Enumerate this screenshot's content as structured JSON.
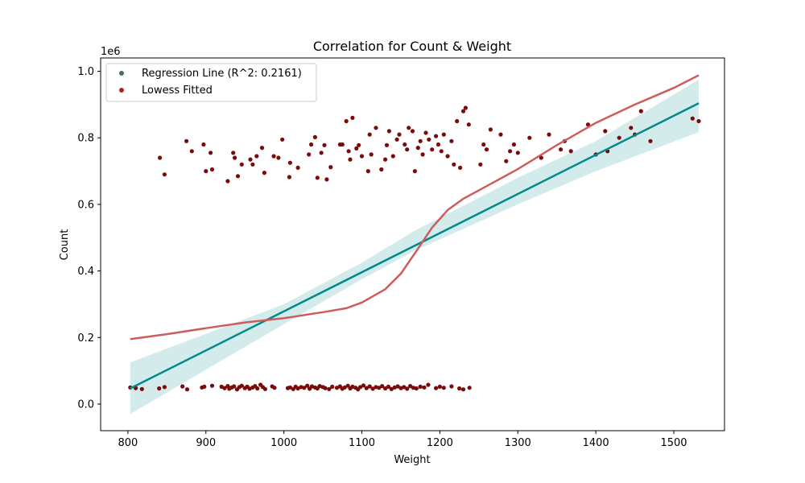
{
  "chart_data": {
    "type": "scatter",
    "title": "Correlation for Count & Weight",
    "xlabel": "Weight",
    "ylabel": "Count",
    "y_offset_label": "1e6",
    "xlim": [
      765,
      1565
    ],
    "ylim": [
      -80000,
      1040000
    ],
    "xticks": [
      800,
      900,
      1000,
      1100,
      1200,
      1300,
      1400,
      1500
    ],
    "xtick_labels": [
      "800",
      "900",
      "1000",
      "1100",
      "1200",
      "1300",
      "1400",
      "1500"
    ],
    "yticks": [
      0,
      200000,
      400000,
      600000,
      800000,
      1000000
    ],
    "ytick_labels": [
      "0.0",
      "0.2",
      "0.4",
      "0.6",
      "0.8",
      "1.0"
    ],
    "grid": false,
    "legend_position": "top-left",
    "legend": [
      {
        "label": "Regression Line (R^2: 0.2161)",
        "color": "#4c6b68"
      },
      {
        "label": "Lowess Fitted",
        "color": "#b22222"
      }
    ],
    "colors": {
      "points": "#7b0b0b",
      "regression": "#008b8b",
      "ci_band": "#d3eceb",
      "lowess": "#cd5c5c"
    },
    "regression_line": {
      "x": [
        803,
        1532
      ],
      "y": [
        47000,
        904000
      ]
    },
    "regression_ci": {
      "x": [
        803,
        1000,
        1100,
        1167,
        1300,
        1400,
        1532
      ],
      "upper": [
        125000,
        300000,
        425000,
        520000,
        680000,
        790000,
        975000
      ],
      "lower": [
        -30000,
        240000,
        375000,
        460000,
        600000,
        700000,
        817000
      ]
    },
    "lowess_line": {
      "x": [
        803,
        850,
        900,
        950,
        1000,
        1050,
        1080,
        1100,
        1130,
        1150,
        1170,
        1190,
        1210,
        1230,
        1260,
        1300,
        1350,
        1400,
        1450,
        1500,
        1532
      ],
      "y": [
        195000,
        210000,
        228000,
        245000,
        258000,
        276000,
        288000,
        305000,
        345000,
        392000,
        460000,
        530000,
        583000,
        617000,
        655000,
        706000,
        778000,
        845000,
        900000,
        950000,
        988000
      ]
    },
    "points_low": {
      "x": [
        803,
        810,
        818,
        840,
        847,
        870,
        876,
        895,
        898,
        908,
        920,
        924,
        928,
        930,
        933,
        936,
        940,
        943,
        946,
        950,
        953,
        956,
        960,
        963,
        966,
        970,
        973,
        976,
        985,
        988,
        1005,
        1008,
        1012,
        1015,
        1018,
        1022,
        1026,
        1030,
        1033,
        1036,
        1040,
        1043,
        1046,
        1050,
        1053,
        1058,
        1062,
        1068,
        1072,
        1075,
        1078,
        1082,
        1085,
        1088,
        1092,
        1095,
        1098,
        1102,
        1106,
        1110,
        1114,
        1118,
        1122,
        1126,
        1130,
        1134,
        1138,
        1142,
        1146,
        1150,
        1154,
        1158,
        1162,
        1166,
        1170,
        1175,
        1180,
        1185,
        1195,
        1200,
        1205,
        1215,
        1225,
        1230,
        1238
      ],
      "y": [
        50000,
        48000,
        45000,
        47000,
        51000,
        53000,
        44000,
        50000,
        52000,
        55000,
        52000,
        48000,
        54000,
        46000,
        50000,
        53000,
        44000,
        51000,
        55000,
        48000,
        52000,
        46000,
        50000,
        54000,
        47000,
        58000,
        51000,
        45000,
        53000,
        49000,
        48000,
        50000,
        45000,
        52000,
        47000,
        51000,
        49000,
        55000,
        46000,
        53000,
        50000,
        47000,
        54000,
        51000,
        48000,
        45000,
        52000,
        49000,
        53000,
        46000,
        50000,
        55000,
        47000,
        52000,
        49000,
        44000,
        51000,
        56000,
        48000,
        53000,
        46000,
        51000,
        49000,
        54000,
        47000,
        52000,
        45000,
        50000,
        53000,
        48000,
        51000,
        46000,
        54000,
        49000,
        47000,
        52000,
        50000,
        58000,
        48000,
        52000,
        49000,
        53000,
        47000,
        44000,
        49000
      ]
    },
    "points_high": {
      "x": [
        841,
        847,
        875,
        882,
        897,
        900,
        906,
        908,
        928,
        935,
        937,
        941,
        946,
        957,
        960,
        965,
        972,
        975,
        987,
        993,
        998,
        1007,
        1008,
        1018,
        1032,
        1035,
        1040,
        1043,
        1048,
        1052,
        1055,
        1060,
        1072,
        1075,
        1080,
        1083,
        1085,
        1088,
        1093,
        1096,
        1100,
        1108,
        1110,
        1112,
        1118,
        1125,
        1130,
        1132,
        1135,
        1140,
        1145,
        1148,
        1155,
        1158,
        1160,
        1165,
        1168,
        1172,
        1175,
        1178,
        1182,
        1186,
        1190,
        1195,
        1198,
        1202,
        1205,
        1210,
        1215,
        1218,
        1222,
        1226,
        1230,
        1233,
        1237,
        1252,
        1256,
        1260,
        1265,
        1278,
        1285,
        1290,
        1295,
        1300,
        1315,
        1330,
        1340,
        1355,
        1360,
        1368,
        1390,
        1400,
        1412,
        1415,
        1430,
        1445,
        1450,
        1458,
        1470,
        1524,
        1532
      ],
      "y": [
        740000,
        690000,
        790000,
        760000,
        780000,
        700000,
        755000,
        705000,
        670000,
        755000,
        740000,
        685000,
        720000,
        735000,
        720000,
        745000,
        770000,
        695000,
        745000,
        740000,
        795000,
        682000,
        725000,
        710000,
        750000,
        780000,
        802000,
        680000,
        755000,
        778000,
        675000,
        712000,
        780000,
        780000,
        850000,
        760000,
        735000,
        860000,
        768000,
        778000,
        745000,
        700000,
        810000,
        750000,
        830000,
        705000,
        735000,
        778000,
        820000,
        745000,
        795000,
        810000,
        780000,
        765000,
        830000,
        820000,
        700000,
        770000,
        790000,
        750000,
        815000,
        795000,
        765000,
        805000,
        780000,
        760000,
        810000,
        745000,
        790000,
        720000,
        850000,
        710000,
        880000,
        890000,
        840000,
        720000,
        780000,
        765000,
        825000,
        810000,
        730000,
        760000,
        780000,
        755000,
        800000,
        740000,
        810000,
        765000,
        790000,
        760000,
        840000,
        750000,
        820000,
        760000,
        800000,
        830000,
        810000,
        880000,
        790000,
        858000,
        850000
      ]
    }
  }
}
